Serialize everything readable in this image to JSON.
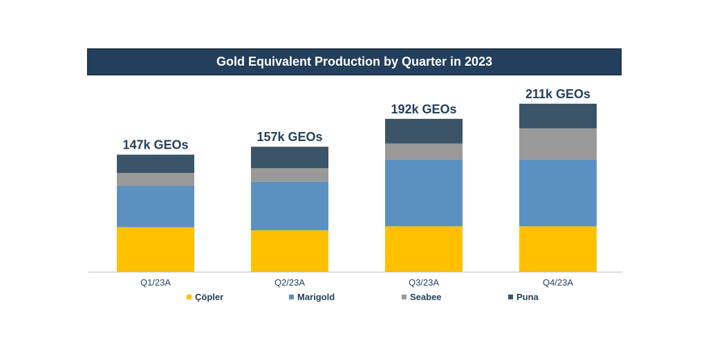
{
  "chart_data": {
    "type": "bar",
    "stacked": true,
    "title": "Gold Equivalent Production by Quarter in 2023",
    "categories": [
      "Q1/23A",
      "Q2/23A",
      "Q3/23A",
      "Q4/23A"
    ],
    "totals": [
      147,
      157,
      192,
      211
    ],
    "total_labels": [
      "147k GEOs",
      "157k GEOs",
      "192k GEOs",
      "211k GEOs"
    ],
    "series": [
      {
        "name": "Çöpler",
        "color": "#ffc000",
        "values": [
          56,
          52,
          57,
          57
        ]
      },
      {
        "name": "Marigold",
        "color": "#5b91c1",
        "values": [
          52,
          61,
          84,
          84
        ]
      },
      {
        "name": "Seabee",
        "color": "#999999",
        "values": [
          16,
          17,
          20,
          39
        ]
      },
      {
        "name": "Puna",
        "color": "#3b5468",
        "values": [
          23,
          27,
          31,
          31
        ]
      }
    ],
    "ylim": [
      0,
      211
    ],
    "grid": false,
    "legend_position": "bottom",
    "colors": {
      "title_bg": "#243f5c",
      "label_text": "#243f5c",
      "axis": "#bfbfbf"
    }
  }
}
